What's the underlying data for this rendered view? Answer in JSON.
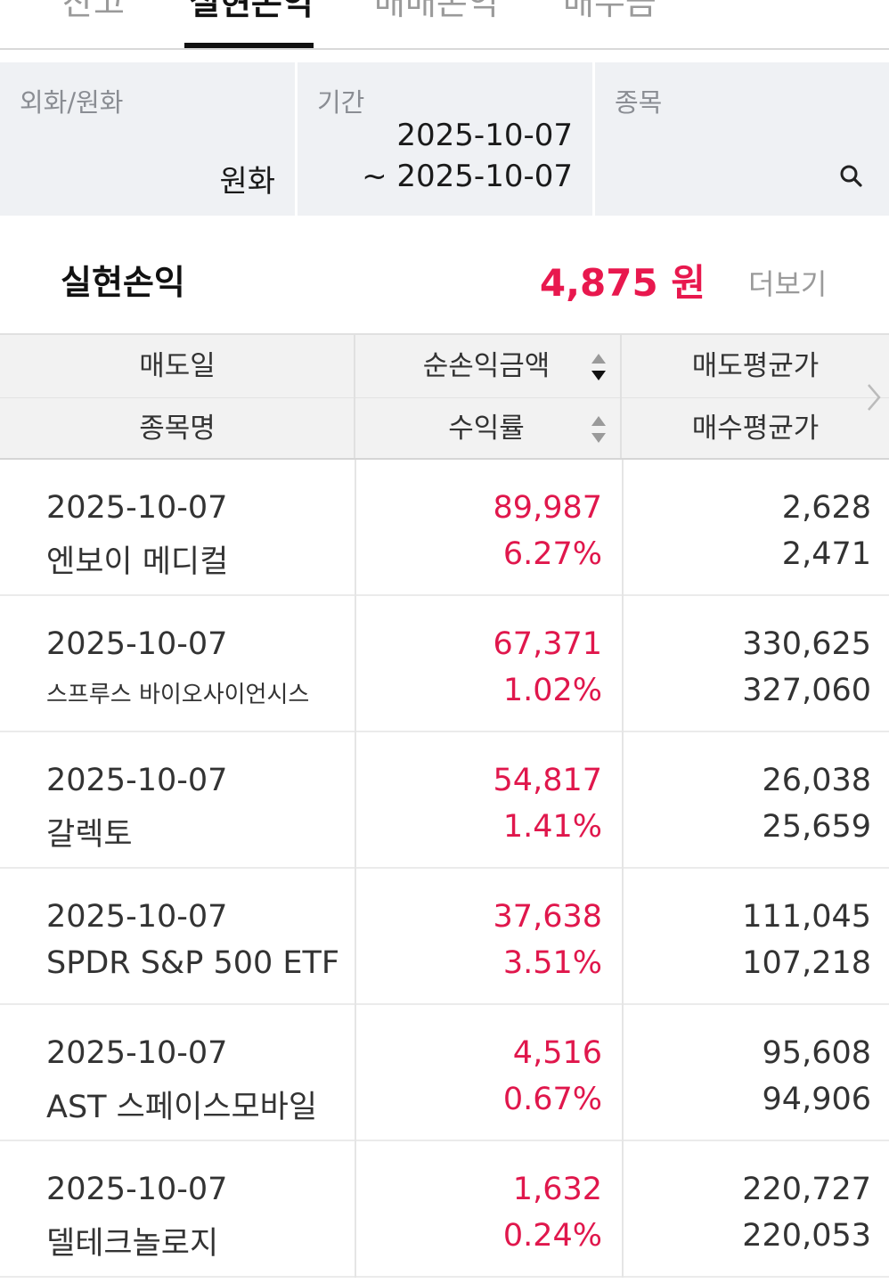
{
  "tabs": [
    {
      "label": "잔고",
      "active": false
    },
    {
      "label": "실현손익",
      "active": true
    },
    {
      "label": "매매손익",
      "active": false
    },
    {
      "label": "매수금",
      "active": false
    }
  ],
  "filters": {
    "currency": {
      "label": "외화/원화",
      "value": "원화"
    },
    "period": {
      "label": "기간",
      "from": "2025-10-07",
      "to": "~ 2025-10-07"
    },
    "stock": {
      "label": "종목",
      "value": ""
    }
  },
  "summary": {
    "title": "실현손익",
    "amount": "4,875 원",
    "more_label": "더보기"
  },
  "table": {
    "headers": {
      "row1": [
        "매도일",
        "순손익금액",
        "매도평균가"
      ],
      "row2": [
        "종목명",
        "수익률",
        "매수평균가"
      ]
    },
    "rows": [
      {
        "date": "2025-10-07",
        "name": "엔보이 메디컬",
        "net_profit": "89,987",
        "return_rate": "6.27%",
        "sell_avg": "2,628",
        "buy_avg": "2,471"
      },
      {
        "date": "2025-10-07",
        "name": "스프루스 바이오사이언시스",
        "net_profit": "67,371",
        "return_rate": "1.02%",
        "sell_avg": "330,625",
        "buy_avg": "327,060"
      },
      {
        "date": "2025-10-07",
        "name": "갈렉토",
        "net_profit": "54,817",
        "return_rate": "1.41%",
        "sell_avg": "26,038",
        "buy_avg": "25,659"
      },
      {
        "date": "2025-10-07",
        "name": "SPDR S&P 500 ETF",
        "net_profit": "37,638",
        "return_rate": "3.51%",
        "sell_avg": "111,045",
        "buy_avg": "107,218"
      },
      {
        "date": "2025-10-07",
        "name": "AST 스페이스모바일",
        "net_profit": "4,516",
        "return_rate": "0.67%",
        "sell_avg": "95,608",
        "buy_avg": "94,906"
      },
      {
        "date": "2025-10-07",
        "name": "델테크놀로지",
        "net_profit": "1,632",
        "return_rate": "0.24%",
        "sell_avg": "220,727",
        "buy_avg": "220,053"
      }
    ]
  },
  "colors": {
    "profit": "#e0174c",
    "filter_bg": "#eff1f4",
    "header_bg": "#f2f2f2"
  },
  "icons": [
    "search-icon",
    "sort-icon",
    "chevron-right-icon"
  ]
}
